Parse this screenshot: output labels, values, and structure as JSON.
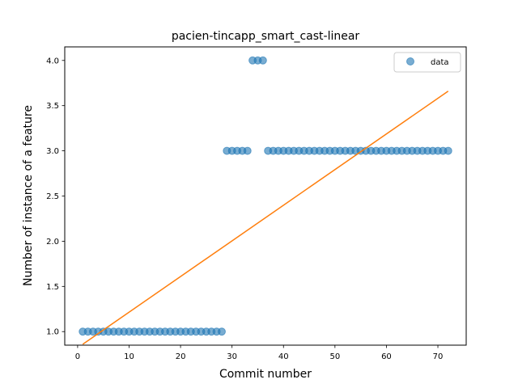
{
  "chart_data": {
    "type": "scatter",
    "title": "pacien-tincapp_smart_cast-linear",
    "xlabel": "Commit number",
    "ylabel": "Number of instance of a feature",
    "xlim": [
      -2.5,
      75.5
    ],
    "ylim": [
      0.85,
      4.15
    ],
    "xticks": [
      0,
      10,
      20,
      30,
      40,
      50,
      60,
      70
    ],
    "yticks": [
      1.0,
      1.5,
      2.0,
      2.5,
      3.0,
      3.5,
      4.0
    ],
    "xtick_labels": [
      "0",
      "10",
      "20",
      "30",
      "40",
      "50",
      "60",
      "70"
    ],
    "ytick_labels": [
      "1.0",
      "1.5",
      "2.0",
      "2.5",
      "3.0",
      "3.5",
      "4.0"
    ],
    "grid": false,
    "legend_position": "top-right",
    "series": [
      {
        "name": "data",
        "kind": "scatter",
        "color": "#1f77b4",
        "x": [
          1,
          2,
          3,
          4,
          5,
          6,
          7,
          8,
          9,
          10,
          11,
          12,
          13,
          14,
          15,
          16,
          17,
          18,
          19,
          20,
          21,
          22,
          23,
          24,
          25,
          26,
          27,
          28,
          29,
          30,
          31,
          32,
          33,
          34,
          35,
          36,
          37,
          38,
          39,
          40,
          41,
          42,
          43,
          44,
          45,
          46,
          47,
          48,
          49,
          50,
          51,
          52,
          53,
          54,
          55,
          56,
          57,
          58,
          59,
          60,
          61,
          62,
          63,
          64,
          65,
          66,
          67,
          68,
          69,
          70,
          71,
          72
        ],
        "y": [
          1,
          1,
          1,
          1,
          1,
          1,
          1,
          1,
          1,
          1,
          1,
          1,
          1,
          1,
          1,
          1,
          1,
          1,
          1,
          1,
          1,
          1,
          1,
          1,
          1,
          1,
          1,
          1,
          3,
          3,
          3,
          3,
          3,
          4,
          4,
          4,
          3,
          3,
          3,
          3,
          3,
          3,
          3,
          3,
          3,
          3,
          3,
          3,
          3,
          3,
          3,
          3,
          3,
          3,
          3,
          3,
          3,
          3,
          3,
          3,
          3,
          3,
          3,
          3,
          3,
          3,
          3,
          3,
          3,
          3,
          3,
          3
        ]
      },
      {
        "kind": "line",
        "color": "#ff7f0e",
        "x": [
          1,
          72
        ],
        "y": [
          0.86,
          3.66
        ]
      }
    ]
  }
}
